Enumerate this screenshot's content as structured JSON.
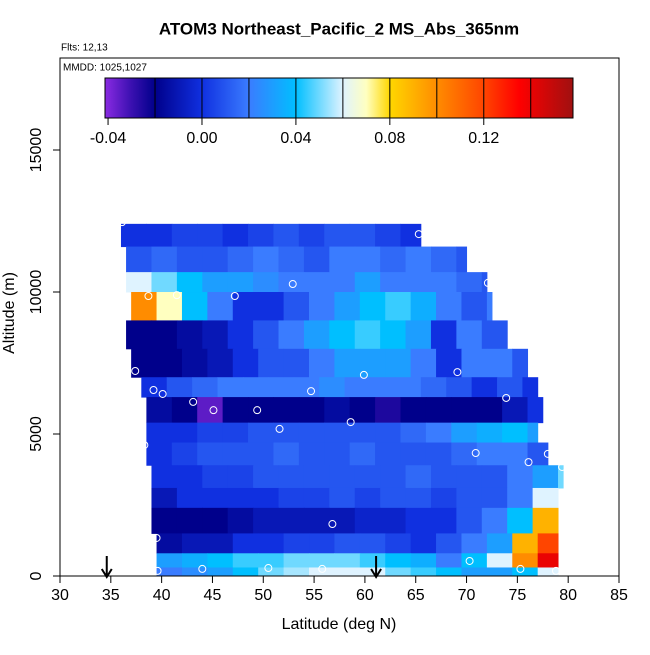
{
  "chart_data": {
    "type": "heatmap",
    "title": "ATOM3 Northeast_Pacific_2 MS_Abs_365nm",
    "annotations": [
      "Flts: 12,13",
      "MMDD: 1025,1027"
    ],
    "x_label": "Latitude (deg N)",
    "y_label": "Altitude (m)",
    "xlim": [
      30,
      85
    ],
    "xticks": [
      30,
      35,
      40,
      45,
      50,
      55,
      60,
      65,
      70,
      75,
      80,
      85
    ],
    "ylim": [
      0,
      18240
    ],
    "yticks": [
      0,
      5000,
      10000,
      15000
    ],
    "colorbar_lim": [
      -0.0413,
      0.158
    ],
    "colorbar_ticks": [
      -0.04,
      {
        "value": 0,
        "label": "0.00"
      },
      0.04,
      0.08,
      0.12
    ],
    "colorbar_breaks": [
      -0.02,
      0,
      0.02,
      0.04,
      0.06,
      0.08,
      0.1,
      0.12,
      0.14
    ],
    "colormap": [
      {
        "value": -0.0413,
        "color": "#8a2be2"
      },
      {
        "value": -0.03,
        "color": "#3a10b0"
      },
      {
        "value": -0.02,
        "color": "#00008b"
      },
      {
        "value": 0,
        "color": "#1030e0"
      },
      {
        "value": 0.02,
        "color": "#3a7cff"
      },
      {
        "value": 0.04,
        "color": "#00bfff"
      },
      {
        "value": 0.06,
        "color": "#dff3ff"
      },
      {
        "value": 0.07,
        "color": "#ffffc0"
      },
      {
        "value": 0.08,
        "color": "#ffd700"
      },
      {
        "value": 0.1,
        "color": "#ff8c00"
      },
      {
        "value": 0.12,
        "color": "#ff4500"
      },
      {
        "value": 0.135,
        "color": "#ff0000"
      },
      {
        "value": 0.158,
        "color": "#a01010"
      }
    ],
    "heatmap": {
      "lat_step": 2.5,
      "rows": [
        {
          "bottom": 11600,
          "top": 12400,
          "lat_start": 36,
          "lat_end": 65.5,
          "values": [
            0.0,
            0.0,
            0.005,
            0.005,
            0.0,
            0.005,
            0.01,
            0.005,
            0.01,
            0.01,
            0.005,
            0.0
          ]
        },
        {
          "bottom": 10700,
          "top": 11600,
          "lat_start": 36.5,
          "lat_end": 70,
          "values": [
            0.01,
            0.015,
            0.01,
            0.01,
            0.015,
            0.02,
            0.015,
            0.01,
            0.02,
            0.02,
            0.015,
            0.02,
            0.015,
            0.01
          ]
        },
        {
          "bottom": 10000,
          "top": 10700,
          "lat_start": 36.5,
          "lat_end": 72,
          "values": [
            0.06,
            0.05,
            0.04,
            0.03,
            0.03,
            0.025,
            0.02,
            0.02,
            0.02,
            0.03,
            0.02,
            0.02,
            0.02,
            0.015,
            0.01
          ]
        },
        {
          "bottom": 9000,
          "top": 10000,
          "lat_start": 37,
          "lat_end": 72.5,
          "values": [
            0.1,
            0.07,
            0.04,
            0.02,
            0.0,
            0.0,
            0.01,
            0.02,
            0.03,
            0.04,
            0.045,
            0.035,
            0.02,
            0.01,
            0.02
          ]
        },
        {
          "bottom": 8000,
          "top": 9000,
          "lat_start": 36.5,
          "lat_end": 74,
          "values": [
            -0.02,
            -0.02,
            -0.015,
            -0.01,
            0.0,
            0.01,
            0.02,
            0.03,
            0.04,
            0.045,
            0.04,
            0.03,
            0.0,
            0.02,
            0.01
          ]
        },
        {
          "bottom": 7000,
          "top": 8000,
          "lat_start": 37,
          "lat_end": 76,
          "values": [
            -0.02,
            -0.02,
            -0.015,
            -0.01,
            0.0,
            0.01,
            0.01,
            0.02,
            0.03,
            0.03,
            0.03,
            0.02,
            0.0,
            0.02,
            0.02,
            0.01
          ]
        },
        {
          "bottom": 6300,
          "top": 7000,
          "lat_start": 38,
          "lat_end": 77,
          "values": [
            0.0,
            0.01,
            0.015,
            0.02,
            0.02,
            0.02,
            0.02,
            0.025,
            0.02,
            0.02,
            0.02,
            0.015,
            0.01,
            0.0,
            0.01,
            0.0
          ]
        },
        {
          "bottom": 5400,
          "top": 6300,
          "lat_start": 38.5,
          "lat_end": 77.5,
          "values": [
            -0.015,
            -0.02,
            -0.035,
            -0.02,
            -0.02,
            -0.02,
            -0.02,
            -0.015,
            -0.02,
            -0.025,
            -0.02,
            -0.02,
            -0.02,
            -0.02,
            -0.01,
            0.0
          ]
        },
        {
          "bottom": 4700,
          "top": 5400,
          "lat_start": 38.5,
          "lat_end": 77,
          "values": [
            0.0,
            0.0,
            0.005,
            0.005,
            0.01,
            0.01,
            0.01,
            0.01,
            0.01,
            0.01,
            0.015,
            0.02,
            0.03,
            0.035,
            0.04,
            0.03
          ]
        },
        {
          "bottom": 3900,
          "top": 4700,
          "lat_start": 38.5,
          "lat_end": 78,
          "values": [
            0.0,
            0.005,
            0.01,
            0.01,
            0.01,
            0.015,
            0.01,
            0.01,
            0.015,
            0.01,
            0.01,
            0.01,
            0.015,
            0.02,
            0.02,
            0.01
          ]
        },
        {
          "bottom": 3100,
          "top": 3900,
          "lat_start": 39,
          "lat_end": 79.5,
          "values": [
            0.0,
            0.0,
            0.005,
            0.005,
            0.01,
            0.01,
            0.01,
            0.01,
            0.01,
            0.01,
            0.015,
            0.01,
            0.01,
            0.01,
            0.02,
            0.03,
            0.05
          ]
        },
        {
          "bottom": 2400,
          "top": 3100,
          "lat_start": 39,
          "lat_end": 79,
          "values": [
            -0.01,
            0.0,
            0.0,
            0.0,
            0.0,
            0.005,
            0.005,
            0.01,
            0.005,
            0.01,
            0.01,
            0.005,
            0.01,
            0.01,
            0.02,
            0.06
          ]
        },
        {
          "bottom": 1500,
          "top": 2400,
          "lat_start": 39,
          "lat_end": 79,
          "values": [
            -0.02,
            -0.02,
            -0.02,
            -0.015,
            -0.01,
            -0.01,
            -0.01,
            -0.01,
            -0.005,
            -0.005,
            0.0,
            0.0,
            0.01,
            0.02,
            0.04,
            0.09
          ]
        },
        {
          "bottom": 800,
          "top": 1500,
          "lat_start": 39.5,
          "lat_end": 79,
          "values": [
            -0.015,
            -0.01,
            -0.01,
            0.0,
            0.0,
            0.005,
            0.005,
            0.01,
            0.01,
            0.005,
            0.0,
            0.01,
            0.02,
            0.03,
            0.09,
            0.12
          ]
        },
        {
          "bottom": 300,
          "top": 800,
          "lat_start": 39.5,
          "lat_end": 79,
          "values": [
            0.03,
            0.035,
            0.04,
            0.045,
            0.045,
            0.05,
            0.05,
            0.05,
            0.045,
            0.04,
            0.035,
            0.02,
            0.04,
            0.06,
            0.1,
            0.14
          ]
        },
        {
          "bottom": 0,
          "top": 300,
          "lat_start": 39.5,
          "lat_end": 79,
          "values": [
            0.02,
            0.025,
            0.03,
            0.04,
            0.05,
            0.055,
            0.06,
            0.06,
            0.06,
            0.05,
            0.045,
            0.04,
            0.03,
            0.03,
            0.04,
            0.06
          ]
        }
      ]
    },
    "points": {
      "color": "#ffffff",
      "lat": [
        36.1,
        65.3,
        72.1,
        52.9,
        47.2,
        41.5,
        38.7,
        37.4,
        59.9,
        69.1,
        76.9,
        39.2,
        40.1,
        54.7,
        73.9,
        43.1,
        45.1,
        49.4,
        58.6,
        51.6,
        38.3,
        70.9,
        78.0,
        76.1,
        79.4,
        56.8,
        39.5,
        70.3,
        75.3,
        39.6,
        44.0,
        50.5,
        55.8,
        78.8
      ],
      "alt": [
        12460,
        12040,
        10320,
        10280,
        9860,
        9890,
        9860,
        7220,
        7080,
        7180,
        7390,
        6550,
        6410,
        6510,
        6270,
        6130,
        5840,
        5840,
        5420,
        5180,
        4610,
        4330,
        4300,
        4010,
        3840,
        1830,
        1340,
        530,
        250,
        180,
        250,
        280,
        250,
        180
      ]
    },
    "arrows_lat": [
      34.6,
      61.1
    ]
  }
}
